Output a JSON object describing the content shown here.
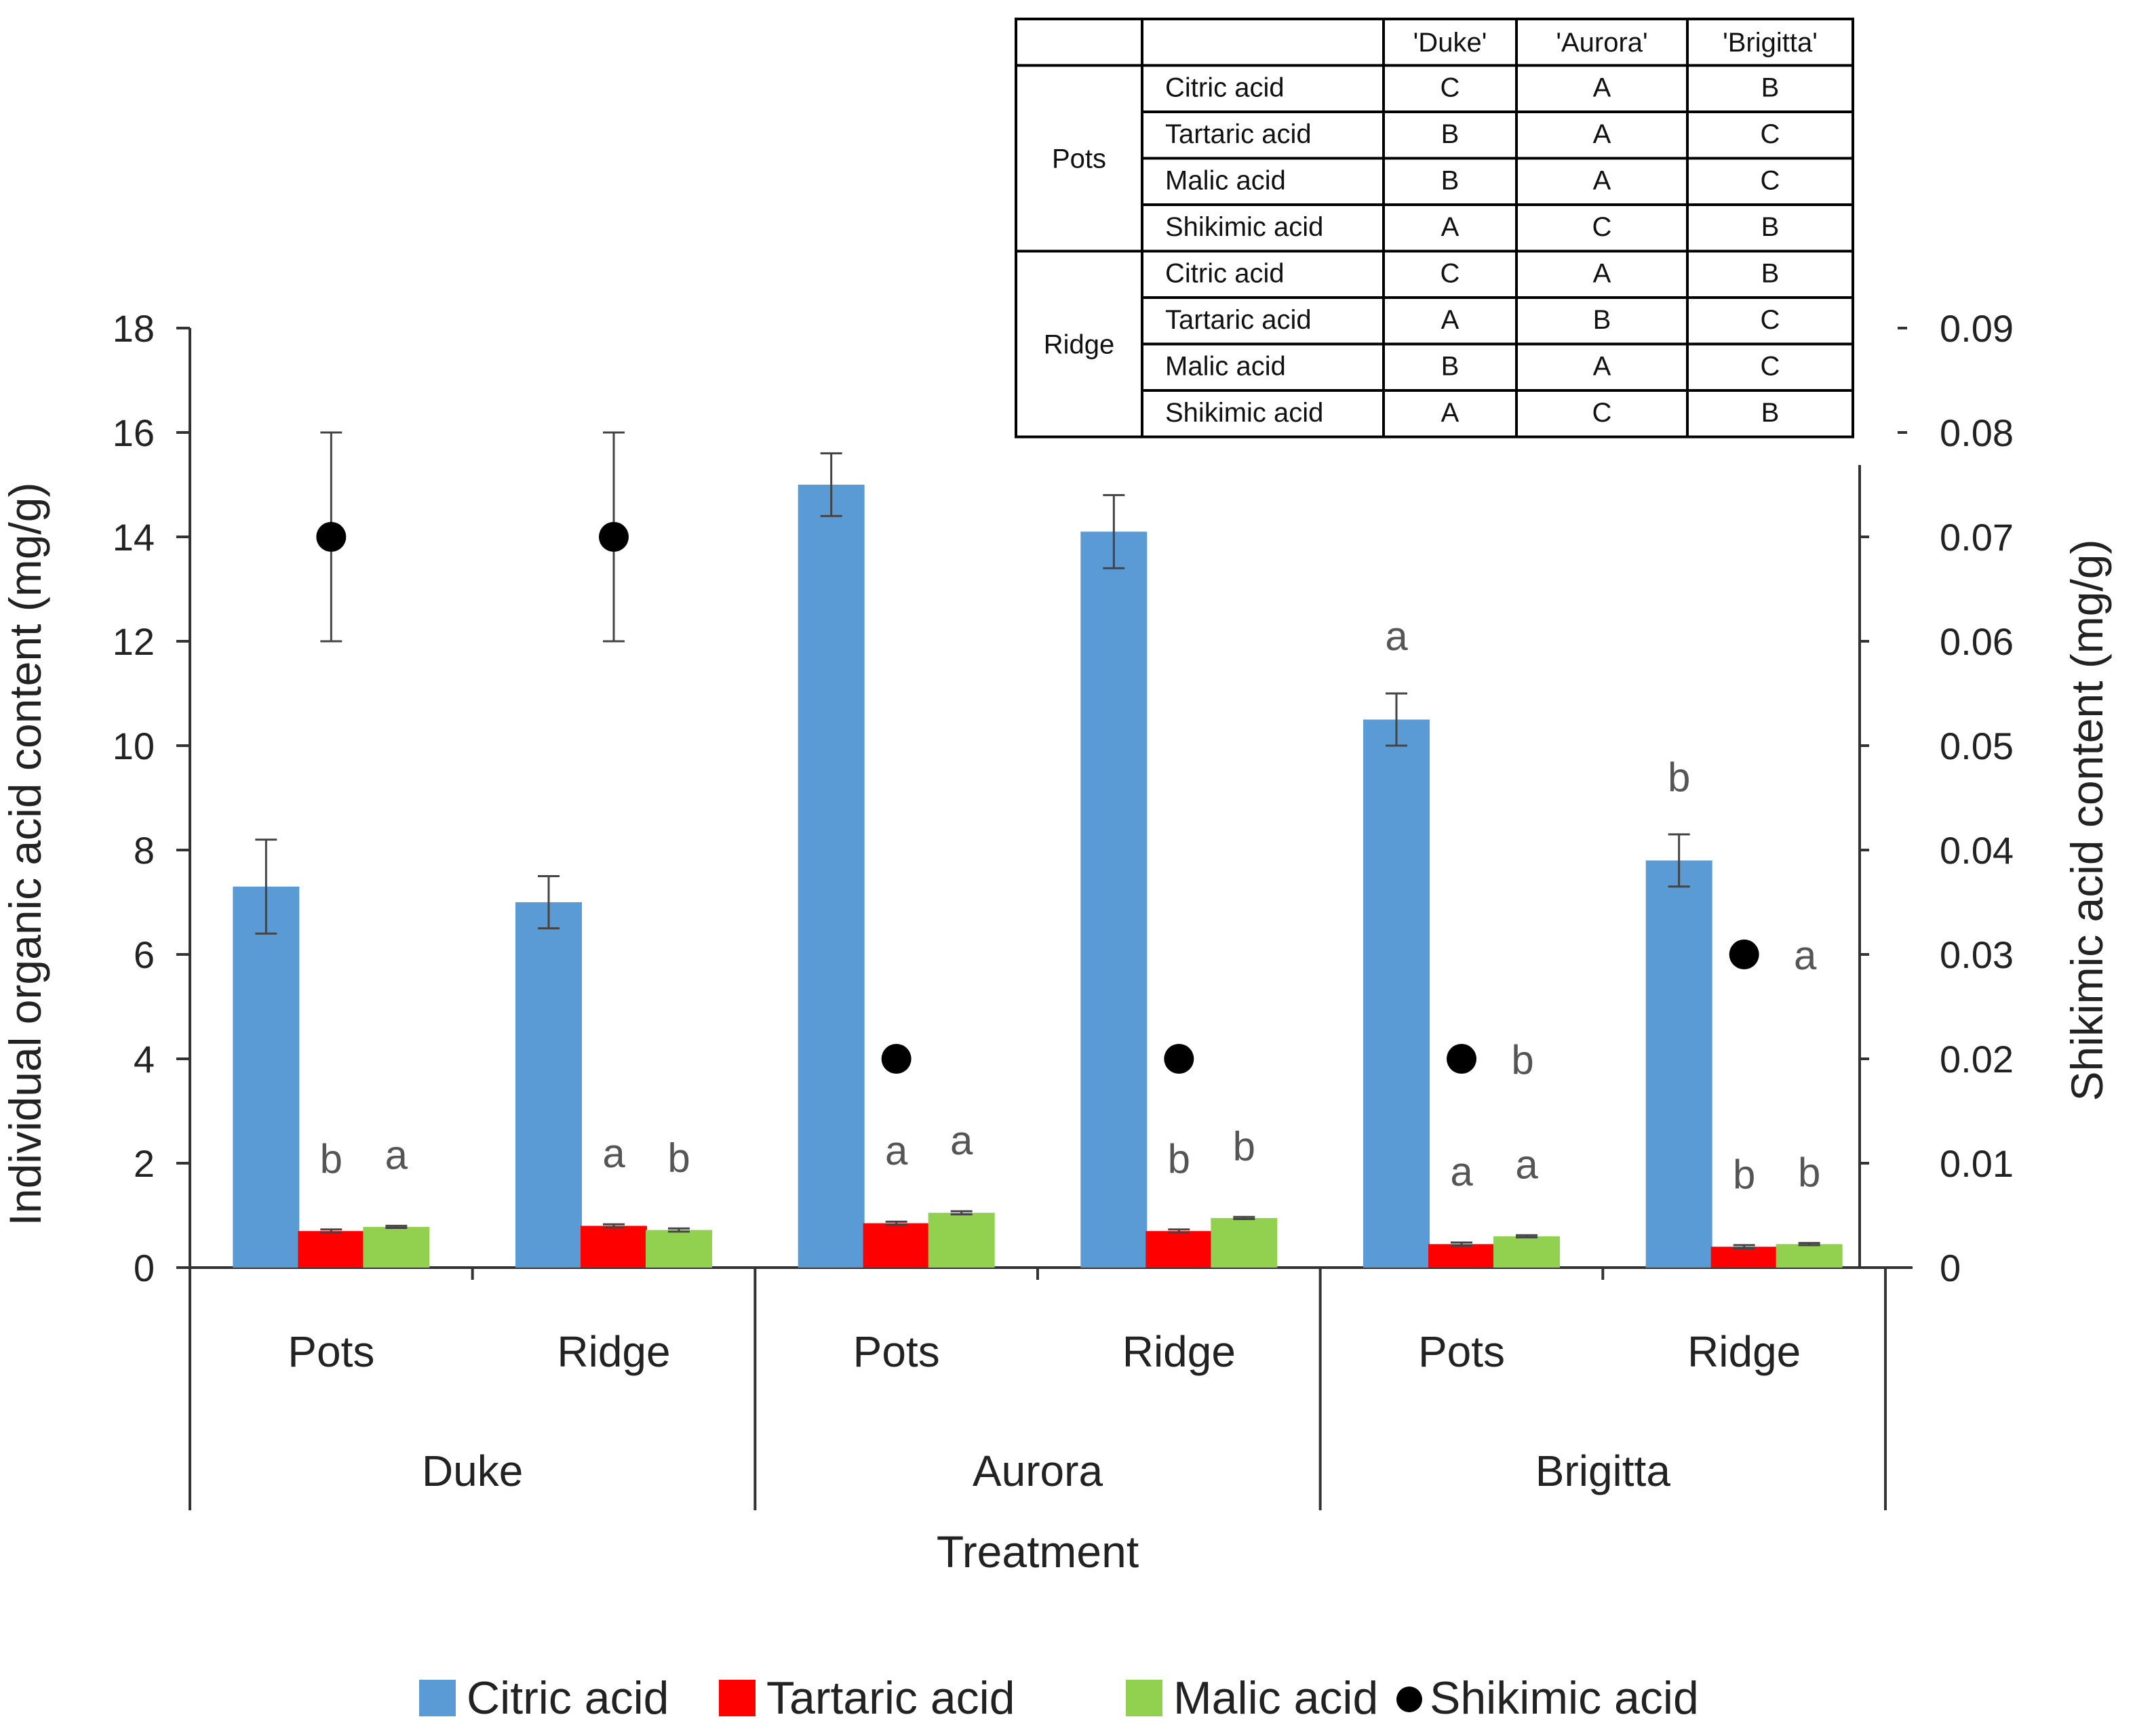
{
  "chart_data": {
    "type": "bar",
    "title": "",
    "xlabel": "Treatment",
    "ylabel": "Individual organic acid content (mg/g)",
    "y2label": "Shikimic acid content (mg/g)",
    "ylim": [
      0,
      18
    ],
    "yticks": [
      "0",
      "2",
      "4",
      "6",
      "8",
      "10",
      "12",
      "14",
      "16",
      "18"
    ],
    "y2lim": [
      0,
      0.09
    ],
    "y2ticks": [
      "0",
      "0.01",
      "0.02",
      "0.03",
      "0.04",
      "0.05",
      "0.06",
      "0.07",
      "0.08",
      "0.09"
    ],
    "groups": [
      {
        "name": "Duke",
        "categories": [
          "Pots",
          "Ridge"
        ]
      },
      {
        "name": "Aurora",
        "categories": [
          "Pots",
          "Ridge"
        ]
      },
      {
        "name": "Brigitta",
        "categories": [
          "Pots",
          "Ridge"
        ]
      }
    ],
    "series": [
      {
        "name": "Citric acid",
        "kind": "bar",
        "axis": "left",
        "color": "#5B9BD5",
        "values": [
          7.3,
          7.0,
          15.0,
          14.1,
          10.5,
          7.8
        ],
        "errors": [
          0.9,
          0.5,
          0.6,
          0.7,
          0.5,
          0.5
        ],
        "letters": [
          "",
          "",
          "",
          "",
          "a",
          "b"
        ]
      },
      {
        "name": "Tartaric acid",
        "kind": "bar",
        "axis": "left",
        "color": "#FF0000",
        "values": [
          0.7,
          0.8,
          0.85,
          0.7,
          0.45,
          0.4
        ],
        "errors": [
          0.03,
          0.03,
          0.03,
          0.03,
          0.03,
          0.03
        ],
        "letters": [
          "b",
          "a",
          "a",
          "b",
          "a",
          "b"
        ]
      },
      {
        "name": "Malic acid",
        "kind": "bar",
        "axis": "left",
        "color": "#92D050",
        "values": [
          0.78,
          0.72,
          1.05,
          0.95,
          0.6,
          0.45
        ],
        "errors": [
          0.02,
          0.03,
          0.03,
          0.02,
          0.02,
          0.02
        ],
        "letters": [
          "a",
          "b",
          "a",
          "b",
          "a",
          "b"
        ]
      },
      {
        "name": "Shikimic acid",
        "kind": "point",
        "axis": "right",
        "color": "#000000",
        "values": [
          0.07,
          0.07,
          0.02,
          0.02,
          0.02,
          0.03
        ],
        "errors": [
          0.01,
          0.01,
          0,
          0,
          0,
          0
        ],
        "letters": [
          "",
          "",
          "",
          "",
          "b",
          "a"
        ]
      }
    ],
    "legend": [
      "Citric acid",
      "Tartaric acid",
      "Malic acid",
      "Shikimic acid"
    ]
  },
  "inset_table": {
    "header": [
      "",
      "",
      "'Duke'",
      "'Aurora'",
      "'Brigitta'"
    ],
    "blocks": [
      {
        "label": "Pots",
        "rows": [
          {
            "acid": "Citric acid",
            "values": [
              "C",
              "A",
              "B"
            ]
          },
          {
            "acid": "Tartaric acid",
            "values": [
              "B",
              "A",
              "C"
            ]
          },
          {
            "acid": "Malic acid",
            "values": [
              "B",
              "A",
              "C"
            ]
          },
          {
            "acid": "Shikimic acid",
            "values": [
              "A",
              "C",
              "B"
            ]
          }
        ]
      },
      {
        "label": "Ridge",
        "rows": [
          {
            "acid": "Citric acid",
            "values": [
              "C",
              "A",
              "B"
            ]
          },
          {
            "acid": "Tartaric acid",
            "values": [
              "A",
              "B",
              "C"
            ]
          },
          {
            "acid": "Malic acid",
            "values": [
              "B",
              "A",
              "C"
            ]
          },
          {
            "acid": "Shikimic acid",
            "values": [
              "A",
              "C",
              "B"
            ]
          }
        ]
      }
    ]
  }
}
